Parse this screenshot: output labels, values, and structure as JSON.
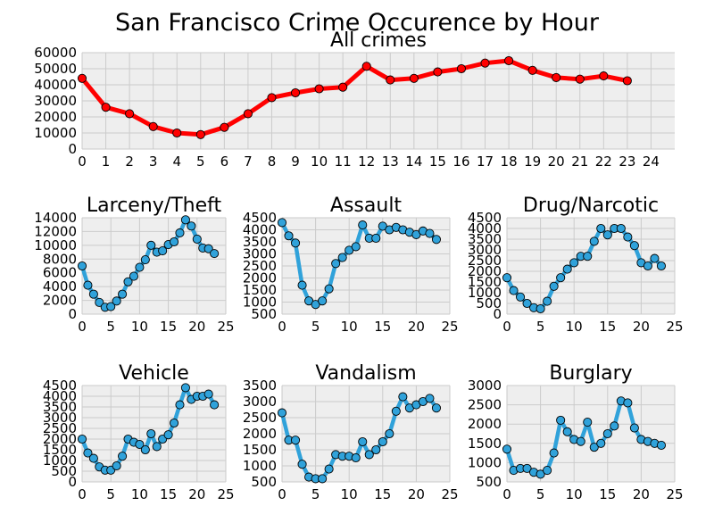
{
  "figure": {
    "title": "San Francisco Crime Occurence by Hour"
  },
  "colors": {
    "background": "#ffffff",
    "plot_background": "#eeeeee",
    "grid": "#cbcbcb",
    "main_line": "#ff0000",
    "small_line": "#30a2da",
    "marker_edge": "#000000"
  },
  "chart_data": [
    {
      "id": "all",
      "type": "line",
      "title": "All crimes",
      "xlabel": "",
      "ylabel": "",
      "x": [
        0,
        1,
        2,
        3,
        4,
        5,
        6,
        7,
        8,
        9,
        10,
        11,
        12,
        13,
        14,
        15,
        16,
        17,
        18,
        19,
        20,
        21,
        22,
        23
      ],
      "series": [
        {
          "values": [
            44000,
            26000,
            22000,
            14000,
            10000,
            9000,
            13500,
            22000,
            32000,
            35000,
            37500,
            38500,
            51500,
            43000,
            44000,
            48000,
            50000,
            53500,
            55000,
            49000,
            44500,
            43500,
            45500,
            42500
          ]
        }
      ],
      "xlim": [
        0,
        25
      ],
      "ylim": [
        0,
        60000
      ],
      "xticks": [
        0,
        1,
        2,
        3,
        4,
        5,
        6,
        7,
        8,
        9,
        10,
        11,
        12,
        13,
        14,
        15,
        16,
        17,
        18,
        19,
        20,
        21,
        22,
        23,
        24
      ],
      "yticks": [
        0,
        10000,
        20000,
        30000,
        40000,
        50000,
        60000
      ],
      "grid": true,
      "line_color": "#ff0000",
      "marker_color": "#ff0000"
    },
    {
      "id": "larceny",
      "type": "line",
      "title": "Larceny/Theft",
      "xlabel": "",
      "ylabel": "",
      "x": [
        0,
        1,
        2,
        3,
        4,
        5,
        6,
        7,
        8,
        9,
        10,
        11,
        12,
        13,
        14,
        15,
        16,
        17,
        18,
        19,
        20,
        21,
        22,
        23
      ],
      "series": [
        {
          "values": [
            7000,
            4200,
            2900,
            1700,
            1000,
            1100,
            1900,
            2900,
            4700,
            5500,
            6800,
            7900,
            10000,
            9000,
            9200,
            10100,
            10500,
            11800,
            13700,
            12800,
            10900,
            9600,
            9500,
            8800
          ]
        }
      ],
      "xlim": [
        0,
        25
      ],
      "ylim": [
        0,
        14000
      ],
      "xticks": [
        0,
        5,
        10,
        15,
        20,
        25
      ],
      "yticks": [
        0,
        2000,
        4000,
        6000,
        8000,
        10000,
        12000,
        14000
      ],
      "grid": true,
      "line_color": "#30a2da",
      "marker_color": "#30a2da"
    },
    {
      "id": "assault",
      "type": "line",
      "title": "Assault",
      "xlabel": "",
      "ylabel": "",
      "x": [
        0,
        1,
        2,
        3,
        4,
        5,
        6,
        7,
        8,
        9,
        10,
        11,
        12,
        13,
        14,
        15,
        16,
        17,
        18,
        19,
        20,
        21,
        22,
        23
      ],
      "series": [
        {
          "values": [
            4300,
            3750,
            3450,
            1700,
            1050,
            900,
            1050,
            1550,
            2600,
            2850,
            3150,
            3300,
            4200,
            3650,
            3650,
            4150,
            4000,
            4100,
            4000,
            3900,
            3800,
            3950,
            3850,
            3600
          ]
        }
      ],
      "xlim": [
        0,
        25
      ],
      "ylim": [
        500,
        4500
      ],
      "xticks": [
        0,
        5,
        10,
        15,
        20,
        25
      ],
      "yticks": [
        500,
        1000,
        1500,
        2000,
        2500,
        3000,
        3500,
        4000,
        4500
      ],
      "grid": true,
      "line_color": "#30a2da",
      "marker_color": "#30a2da"
    },
    {
      "id": "drug",
      "type": "line",
      "title": "Drug/Narcotic",
      "xlabel": "",
      "ylabel": "",
      "x": [
        0,
        1,
        2,
        3,
        4,
        5,
        6,
        7,
        8,
        9,
        10,
        11,
        12,
        13,
        14,
        15,
        16,
        17,
        18,
        19,
        20,
        21,
        22,
        23
      ],
      "series": [
        {
          "values": [
            1700,
            1100,
            800,
            500,
            300,
            250,
            600,
            1300,
            1700,
            2100,
            2400,
            2700,
            2700,
            3400,
            4000,
            3700,
            4000,
            4000,
            3600,
            3200,
            2400,
            2250,
            2600,
            2250
          ]
        }
      ],
      "xlim": [
        0,
        25
      ],
      "ylim": [
        0,
        4500
      ],
      "xticks": [
        0,
        5,
        10,
        15,
        20,
        25
      ],
      "yticks": [
        0,
        500,
        1000,
        1500,
        2000,
        2500,
        3000,
        3500,
        4000,
        4500
      ],
      "grid": true,
      "line_color": "#30a2da",
      "marker_color": "#30a2da"
    },
    {
      "id": "vehicle",
      "type": "line",
      "title": "Vehicle",
      "xlabel": "",
      "ylabel": "",
      "x": [
        0,
        1,
        2,
        3,
        4,
        5,
        6,
        7,
        8,
        9,
        10,
        11,
        12,
        13,
        14,
        15,
        16,
        17,
        18,
        19,
        20,
        21,
        22,
        23
      ],
      "series": [
        {
          "values": [
            2000,
            1350,
            1100,
            700,
            550,
            550,
            750,
            1200,
            2000,
            1850,
            1750,
            1500,
            2250,
            1650,
            2000,
            2200,
            2750,
            3600,
            4400,
            3850,
            4000,
            4000,
            4100,
            3600
          ]
        }
      ],
      "xlim": [
        0,
        25
      ],
      "ylim": [
        0,
        4500
      ],
      "xticks": [
        0,
        5,
        10,
        15,
        20,
        25
      ],
      "yticks": [
        0,
        500,
        1000,
        1500,
        2000,
        2500,
        3000,
        3500,
        4000,
        4500
      ],
      "grid": true,
      "line_color": "#30a2da",
      "marker_color": "#30a2da"
    },
    {
      "id": "vandalism",
      "type": "line",
      "title": "Vandalism",
      "xlabel": "",
      "ylabel": "",
      "x": [
        0,
        1,
        2,
        3,
        4,
        5,
        6,
        7,
        8,
        9,
        10,
        11,
        12,
        13,
        14,
        15,
        16,
        17,
        18,
        19,
        20,
        21,
        22,
        23
      ],
      "series": [
        {
          "values": [
            2650,
            1800,
            1800,
            1050,
            650,
            600,
            600,
            900,
            1350,
            1300,
            1300,
            1250,
            1750,
            1350,
            1500,
            1750,
            2000,
            2700,
            3150,
            2800,
            2900,
            3000,
            3100,
            2800
          ]
        }
      ],
      "xlim": [
        0,
        25
      ],
      "ylim": [
        500,
        3500
      ],
      "xticks": [
        0,
        5,
        10,
        15,
        20,
        25
      ],
      "yticks": [
        500,
        1000,
        1500,
        2000,
        2500,
        3000,
        3500
      ],
      "grid": true,
      "line_color": "#30a2da",
      "marker_color": "#30a2da"
    },
    {
      "id": "burglary",
      "type": "line",
      "title": "Burglary",
      "xlabel": "",
      "ylabel": "",
      "x": [
        0,
        1,
        2,
        3,
        4,
        5,
        6,
        7,
        8,
        9,
        10,
        11,
        12,
        13,
        14,
        15,
        16,
        17,
        18,
        19,
        20,
        21,
        22,
        23
      ],
      "series": [
        {
          "values": [
            1350,
            800,
            850,
            850,
            750,
            700,
            800,
            1250,
            2100,
            1800,
            1600,
            1550,
            2050,
            1400,
            1500,
            1750,
            1950,
            2600,
            2550,
            1900,
            1600,
            1550,
            1500,
            1450
          ]
        }
      ],
      "xlim": [
        0,
        25
      ],
      "ylim": [
        500,
        3000
      ],
      "xticks": [
        0,
        5,
        10,
        15,
        20,
        25
      ],
      "yticks": [
        500,
        1000,
        1500,
        2000,
        2500,
        3000
      ],
      "grid": true,
      "line_color": "#30a2da",
      "marker_color": "#30a2da"
    }
  ]
}
